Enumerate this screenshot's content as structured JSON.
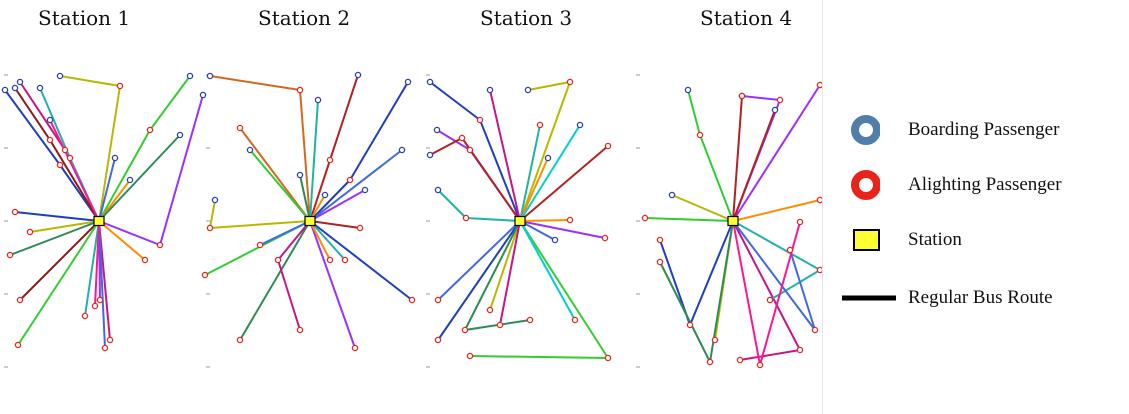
{
  "panels": [
    {
      "title": "Station 1",
      "routes": [
        {
          "color": "#1f3fbf",
          "stops": [
            [
              5,
              90
            ],
            [
              60,
              165
            ],
            [
              99,
              221
            ],
            [
              15,
              212
            ]
          ]
        },
        {
          "color": "#8b1a1a",
          "stops": [
            [
              15,
              88
            ],
            [
              50,
              140
            ],
            [
              99,
              221
            ],
            [
              20,
              300
            ]
          ]
        },
        {
          "color": "#c71585",
          "stops": [
            [
              20,
              82
            ],
            [
              65,
              150
            ],
            [
              99,
              221
            ],
            [
              110,
              340
            ]
          ]
        },
        {
          "color": "#20b2aa",
          "stops": [
            [
              40,
              88
            ],
            [
              70,
              158
            ],
            [
              99,
              221
            ],
            [
              85,
              316
            ]
          ]
        },
        {
          "color": "#b8b800",
          "stops": [
            [
              60,
              76
            ],
            [
              120,
              86
            ],
            [
              99,
              221
            ],
            [
              30,
              232
            ]
          ]
        },
        {
          "color": "#32cd32",
          "stops": [
            [
              190,
              76
            ],
            [
              150,
              130
            ],
            [
              99,
              221
            ],
            [
              18,
              345
            ]
          ]
        },
        {
          "color": "#9b30ff",
          "stops": [
            [
              203,
              95
            ],
            [
              160,
              245
            ],
            [
              99,
              221
            ],
            [
              100,
              300
            ]
          ]
        },
        {
          "color": "#ff8c00",
          "stops": [
            [
              130,
              180
            ],
            [
              99,
              221
            ],
            [
              145,
              260
            ]
          ]
        },
        {
          "color": "#4169e1",
          "stops": [
            [
              115,
              158
            ],
            [
              99,
              221
            ],
            [
              105,
              348
            ]
          ]
        },
        {
          "color": "#2e8b57",
          "stops": [
            [
              180,
              135
            ],
            [
              99,
              221
            ],
            [
              10,
              255
            ]
          ]
        },
        {
          "color": "#ff1493",
          "stops": [
            [
              50,
              120
            ],
            [
              99,
              221
            ],
            [
              95,
              306
            ]
          ]
        }
      ]
    },
    {
      "title": "Station 2",
      "routes": [
        {
          "color": "#d2691e",
          "stops": [
            [
              210,
              76
            ],
            [
              300,
              90
            ],
            [
              310,
              221
            ],
            [
              240,
              128
            ]
          ]
        },
        {
          "color": "#32cd32",
          "stops": [
            [
              250,
              150
            ],
            [
              310,
              221
            ],
            [
              205,
              275
            ]
          ]
        },
        {
          "color": "#b22222",
          "stops": [
            [
              358,
              75
            ],
            [
              330,
              160
            ],
            [
              310,
              221
            ],
            [
              360,
              228
            ]
          ]
        },
        {
          "color": "#1f3fbf",
          "stops": [
            [
              408,
              82
            ],
            [
              350,
              180
            ],
            [
              310,
              221
            ],
            [
              412,
              300
            ]
          ]
        },
        {
          "color": "#20b2aa",
          "stops": [
            [
              318,
              100
            ],
            [
              310,
              221
            ],
            [
              345,
              260
            ]
          ]
        },
        {
          "color": "#b8b800",
          "stops": [
            [
              215,
              200
            ],
            [
              210,
              228
            ],
            [
              310,
              221
            ]
          ]
        },
        {
          "color": "#9b30ff",
          "stops": [
            [
              365,
              190
            ],
            [
              310,
              221
            ],
            [
              355,
              348
            ]
          ]
        },
        {
          "color": "#ff8c00",
          "stops": [
            [
              325,
              195
            ],
            [
              310,
              221
            ],
            [
              330,
              260
            ]
          ]
        },
        {
          "color": "#4169e1",
          "stops": [
            [
              402,
              150
            ],
            [
              310,
              221
            ],
            [
              260,
              245
            ]
          ]
        },
        {
          "color": "#2e8b57",
          "stops": [
            [
              300,
              175
            ],
            [
              310,
              221
            ],
            [
              240,
              340
            ]
          ]
        },
        {
          "color": "#c71585",
          "stops": [
            [
              310,
              221
            ],
            [
              278,
              260
            ],
            [
              300,
              330
            ]
          ]
        }
      ]
    },
    {
      "title": "Station 3",
      "routes": [
        {
          "color": "#1f3fbf",
          "stops": [
            [
              430,
              82
            ],
            [
              480,
              120
            ],
            [
              520,
              221
            ],
            [
              438,
              340
            ]
          ]
        },
        {
          "color": "#9b30ff",
          "stops": [
            [
              437,
              130
            ],
            [
              470,
              150
            ],
            [
              520,
              221
            ],
            [
              605,
              238
            ]
          ]
        },
        {
          "color": "#b22222",
          "stops": [
            [
              430,
              155
            ],
            [
              462,
              138
            ],
            [
              520,
              221
            ],
            [
              608,
              146
            ]
          ]
        },
        {
          "color": "#b8b800",
          "stops": [
            [
              528,
              90
            ],
            [
              570,
              82
            ],
            [
              520,
              221
            ],
            [
              490,
              310
            ]
          ]
        },
        {
          "color": "#20b2aa",
          "stops": [
            [
              438,
              190
            ],
            [
              466,
              218
            ],
            [
              520,
              221
            ],
            [
              540,
              125
            ]
          ]
        },
        {
          "color": "#32cd32",
          "stops": [
            [
              520,
              221
            ],
            [
              608,
              358
            ],
            [
              470,
              356
            ]
          ]
        },
        {
          "color": "#ff8c00",
          "stops": [
            [
              548,
              158
            ],
            [
              520,
              221
            ],
            [
              570,
              220
            ]
          ]
        },
        {
          "color": "#c71585",
          "stops": [
            [
              490,
              90
            ],
            [
              520,
              221
            ],
            [
              500,
              325
            ]
          ]
        },
        {
          "color": "#2e8b57",
          "stops": [
            [
              520,
              221
            ],
            [
              465,
              330
            ],
            [
              530,
              320
            ]
          ]
        },
        {
          "color": "#4169e1",
          "stops": [
            [
              555,
              240
            ],
            [
              520,
              221
            ],
            [
              438,
              300
            ]
          ]
        },
        {
          "color": "#00ced1",
          "stops": [
            [
              580,
              125
            ],
            [
              520,
              221
            ],
            [
              575,
              320
            ]
          ]
        }
      ]
    },
    {
      "title": "Station 4",
      "routes": [
        {
          "color": "#9b30ff",
          "stops": [
            [
              742,
              96
            ],
            [
              780,
              100
            ],
            [
              733,
              221
            ],
            [
              820,
              85
            ]
          ]
        },
        {
          "color": "#b22222",
          "stops": [
            [
              775,
              110
            ],
            [
              733,
              221
            ],
            [
              742,
              96
            ]
          ]
        },
        {
          "color": "#32cd32",
          "stops": [
            [
              688,
              90
            ],
            [
              700,
              135
            ],
            [
              733,
              221
            ],
            [
              645,
              218
            ]
          ]
        },
        {
          "color": "#b8b800",
          "stops": [
            [
              672,
              195
            ],
            [
              733,
              221
            ],
            [
              715,
              340
            ]
          ]
        },
        {
          "color": "#1f3fbf",
          "stops": [
            [
              733,
              221
            ],
            [
              690,
              325
            ],
            [
              660,
              240
            ]
          ]
        },
        {
          "color": "#c71585",
          "stops": [
            [
              733,
              221
            ],
            [
              800,
              350
            ],
            [
              740,
              360
            ]
          ]
        },
        {
          "color": "#20b2aa",
          "stops": [
            [
              733,
              221
            ],
            [
              820,
              270
            ],
            [
              770,
              300
            ]
          ]
        },
        {
          "color": "#ff8c00",
          "stops": [
            [
              733,
              221
            ],
            [
              820,
              200
            ]
          ]
        },
        {
          "color": "#2e8b57",
          "stops": [
            [
              733,
              221
            ],
            [
              710,
              362
            ],
            [
              660,
              262
            ]
          ]
        },
        {
          "color": "#4169e1",
          "stops": [
            [
              733,
              221
            ],
            [
              815,
              330
            ],
            [
              790,
              250
            ]
          ]
        },
        {
          "color": "#ff1493",
          "stops": [
            [
              733,
              221
            ],
            [
              760,
              365
            ],
            [
              800,
              222
            ]
          ]
        }
      ]
    }
  ],
  "legend": [
    {
      "key": "boarding",
      "label": "Boarding Passenger",
      "marker": "ring",
      "color": "#4f7ea8"
    },
    {
      "key": "alighting",
      "label": "Alighting Passenger",
      "marker": "ring",
      "color": "#e8241a"
    },
    {
      "key": "station",
      "label": "Station",
      "marker": "square",
      "color": "#ffff33"
    },
    {
      "key": "route",
      "label": "Regular Bus Route",
      "marker": "line",
      "color": "#000000"
    }
  ]
}
